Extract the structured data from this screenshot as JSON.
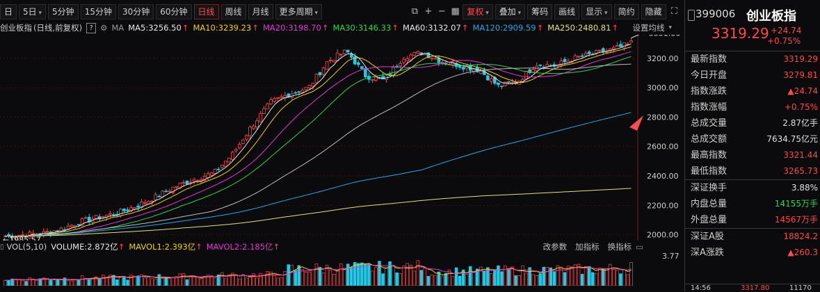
{
  "toolbar": {
    "truncated_tab": "日",
    "period_1": "5日",
    "period_2": "5分钟",
    "period_3": "15分钟",
    "period_4": "30分钟",
    "period_5": "60分钟",
    "period_6": "日线",
    "period_7": "周线",
    "period_8": "月线",
    "more_periods": "更多周期",
    "adjust": "复权",
    "overlay": "叠加",
    "chips": "筹码",
    "draw": "画线",
    "display": "显示",
    "brief": "简约",
    "hide": "隐藏"
  },
  "ma_row": {
    "title": "创业板指",
    "mode": "(日线,前复权)",
    "help": "?",
    "ma_label": "MA",
    "ma5": "MA5:3256.50",
    "ma10": "MA10:3239.23",
    "ma20": "MA20:3198.70",
    "ma30": "MA30:3146.33",
    "ma60": "MA60:3132.07",
    "ma120": "MA120:2909.59",
    "ma250": "MA250:2480.81",
    "setting": "设置均线"
  },
  "colors": {
    "up": "#ff4a4a",
    "down": "#22c8e6",
    "ma5": "#e8e8e8",
    "ma10": "#f5d10f",
    "ma20": "#e43ad6",
    "ma30": "#34d54a",
    "ma60": "#bdbdbd",
    "ma120": "#2aa8e8",
    "ma250": "#e6e07a"
  },
  "chart_data": {
    "type": "candlestick",
    "y_axis_ticks": [
      "3200.00",
      "3000.00",
      "2800.00",
      "2600.00",
      "2400.00",
      "2200.00",
      "2000.00"
    ],
    "high_label": "3331.86",
    "low_label": "1985.57",
    "ylim": [
      1960,
      3360
    ],
    "close_path": [
      1990,
      2000,
      2010,
      2040,
      2090,
      2120,
      2150,
      2200,
      2260,
      2330,
      2380,
      2420,
      2550,
      2740,
      2900,
      2960,
      3000,
      3180,
      3250,
      3080,
      3050,
      3210,
      3240,
      3180,
      3150,
      3120,
      3010,
      3040,
      3160,
      3150,
      3200,
      3230,
      3260,
      3300
    ]
  },
  "volume": {
    "label": "VOL(5,10)",
    "volume": "VOLUME:2.872亿",
    "mavol1": "MAVOL1:2.393亿",
    "mavol2": "MAVOL2:2.185亿",
    "btn_params": "改参数",
    "btn_add": "加指标",
    "btn_switch": "换指标",
    "max_label": "3.77"
  },
  "side": {
    "code": "399006",
    "name": "创业板指",
    "price": "3319.29",
    "change": "+24.74",
    "change_pct": "+0.75%",
    "rows": [
      {
        "label": "最新指数",
        "value": "3319.29",
        "color": "red"
      },
      {
        "label": "今日开盘",
        "value": "3279.81",
        "color": "red"
      },
      {
        "label": "指数涨跌",
        "value": "▲24.74",
        "color": "red"
      },
      {
        "label": "指数涨幅",
        "value": "+0.75%",
        "color": "red"
      },
      {
        "label": "总成交量",
        "value": "2.87亿手",
        "color": "white"
      },
      {
        "label": "总成交额",
        "value": "7634.75亿元",
        "color": "white"
      },
      {
        "label": "最高指数",
        "value": "3321.44",
        "color": "red"
      },
      {
        "label": "最低指数",
        "value": "3265.73",
        "color": "red"
      }
    ],
    "rows2": [
      {
        "label": "深证换手",
        "value": "3.88%",
        "color": "white"
      },
      {
        "label": "内盘总量",
        "value": "14155万手",
        "color": "green"
      },
      {
        "label": "外盘总量",
        "value": "14567万手",
        "color": "red"
      }
    ],
    "rows3": [
      {
        "label": "深证A股",
        "value": "18824.2",
        "color": "red"
      },
      {
        "label": "深A涨跌",
        "value": "▲260.3",
        "color": "red"
      }
    ],
    "bottom_time": "14:56",
    "bottom_price": "3317.80",
    "bottom_vol": "11170"
  }
}
